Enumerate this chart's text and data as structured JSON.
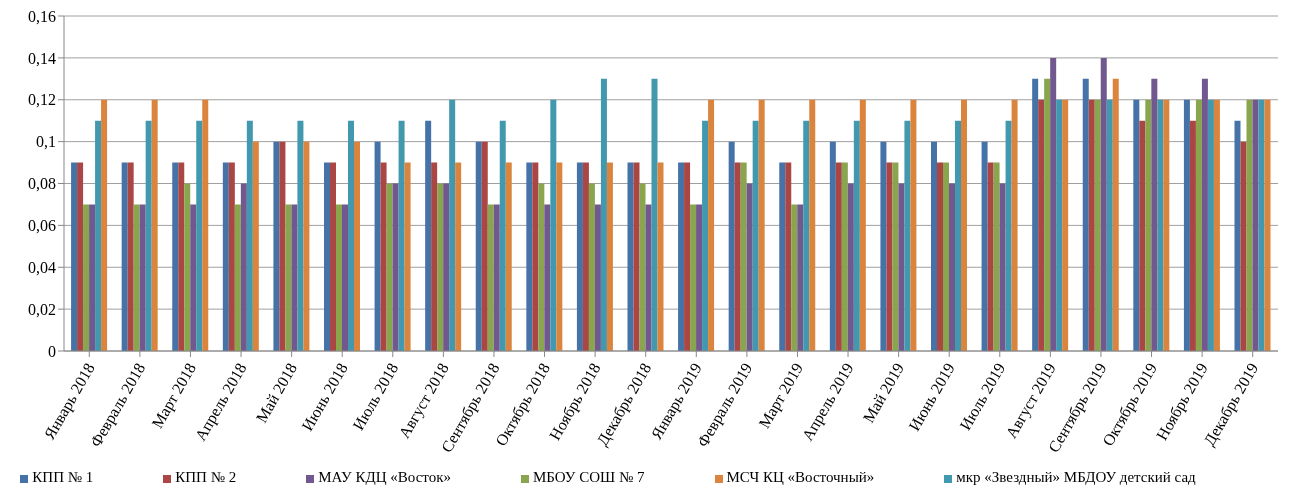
{
  "chart_data": {
    "type": "bar",
    "categories": [
      "Январь 2018",
      "Февраль 2018",
      "Март 2018",
      "Апрель 2018",
      "Май 2018",
      "Июнь 2018",
      "Июль 2018",
      "Август 2018",
      "Сентябрь 2018",
      "Октябрь 2018",
      "Ноябрь 2018",
      "Декабрь 2018",
      "Январь 2019",
      "Февраль 2019",
      "Март 2019",
      "Апрель 2019",
      "Май 2019",
      "Июнь 2019",
      "Июль 2019",
      "Август 2019",
      "Сентябрь 2019",
      "Октябрь 2019",
      "Ноябрь 2019",
      "Декабрь 2019"
    ],
    "series": [
      {
        "name": "КПП № 1",
        "color": "#4572a7",
        "values": [
          0.09,
          0.09,
          0.09,
          0.09,
          0.1,
          0.09,
          0.1,
          0.11,
          0.1,
          0.09,
          0.09,
          0.09,
          0.09,
          0.1,
          0.09,
          0.1,
          0.1,
          0.1,
          0.1,
          0.13,
          0.13,
          0.12,
          0.12,
          0.11
        ]
      },
      {
        "name": "КПП № 2",
        "color": "#aa4643",
        "values": [
          0.09,
          0.09,
          0.09,
          0.09,
          0.1,
          0.09,
          0.09,
          0.09,
          0.1,
          0.09,
          0.09,
          0.09,
          0.09,
          0.09,
          0.09,
          0.09,
          0.09,
          0.09,
          0.09,
          0.12,
          0.12,
          0.11,
          0.11,
          0.1
        ]
      },
      {
        "name": "МБОУ СОШ № 7",
        "color": "#89a54e",
        "values": [
          0.07,
          0.07,
          0.08,
          0.07,
          0.07,
          0.07,
          0.08,
          0.08,
          0.07,
          0.08,
          0.08,
          0.08,
          0.07,
          0.09,
          0.07,
          0.09,
          0.09,
          0.09,
          0.09,
          0.13,
          0.12,
          0.12,
          0.12,
          0.12
        ]
      },
      {
        "name": "МАУ КДЦ «Восток»",
        "color": "#71588f",
        "values": [
          0.07,
          0.07,
          0.07,
          0.08,
          0.07,
          0.07,
          0.08,
          0.08,
          0.07,
          0.07,
          0.07,
          0.07,
          0.07,
          0.08,
          0.07,
          0.08,
          0.08,
          0.08,
          0.08,
          0.14,
          0.14,
          0.13,
          0.13,
          0.12
        ]
      },
      {
        "name": "мкр «Звездный» МБДОУ детский сад",
        "color": "#4198af",
        "values": [
          0.11,
          0.11,
          0.11,
          0.11,
          0.11,
          0.11,
          0.11,
          0.12,
          0.11,
          0.12,
          0.13,
          0.13,
          0.11,
          0.11,
          0.11,
          0.11,
          0.11,
          0.11,
          0.11,
          0.12,
          0.12,
          0.12,
          0.12,
          0.12
        ]
      },
      {
        "name": "МСЧ КЦ «Восточный»",
        "color": "#db843d",
        "values": [
          0.12,
          0.12,
          0.12,
          0.1,
          0.1,
          0.1,
          0.09,
          0.09,
          0.09,
          0.09,
          0.09,
          0.09,
          0.12,
          0.12,
          0.12,
          0.12,
          0.12,
          0.12,
          0.12,
          0.12,
          0.13,
          0.12,
          0.12,
          0.12
        ]
      }
    ],
    "ylim": [
      0,
      0.16
    ],
    "yticks": [
      0,
      {
        "value": 0.02,
        "label": "0,02"
      },
      {
        "value": 0.04,
        "label": "0,04"
      },
      {
        "value": 0.06,
        "label": "0,06"
      },
      {
        "value": 0.08,
        "label": "0,08"
      },
      {
        "value": 0.1,
        "label": "0,1"
      },
      {
        "value": 0.12,
        "label": "0,12"
      },
      {
        "value": 0.14,
        "label": "0,14"
      },
      {
        "value": 0.16,
        "label": "0,16"
      }
    ],
    "grid": "y",
    "legend": "bottom"
  }
}
